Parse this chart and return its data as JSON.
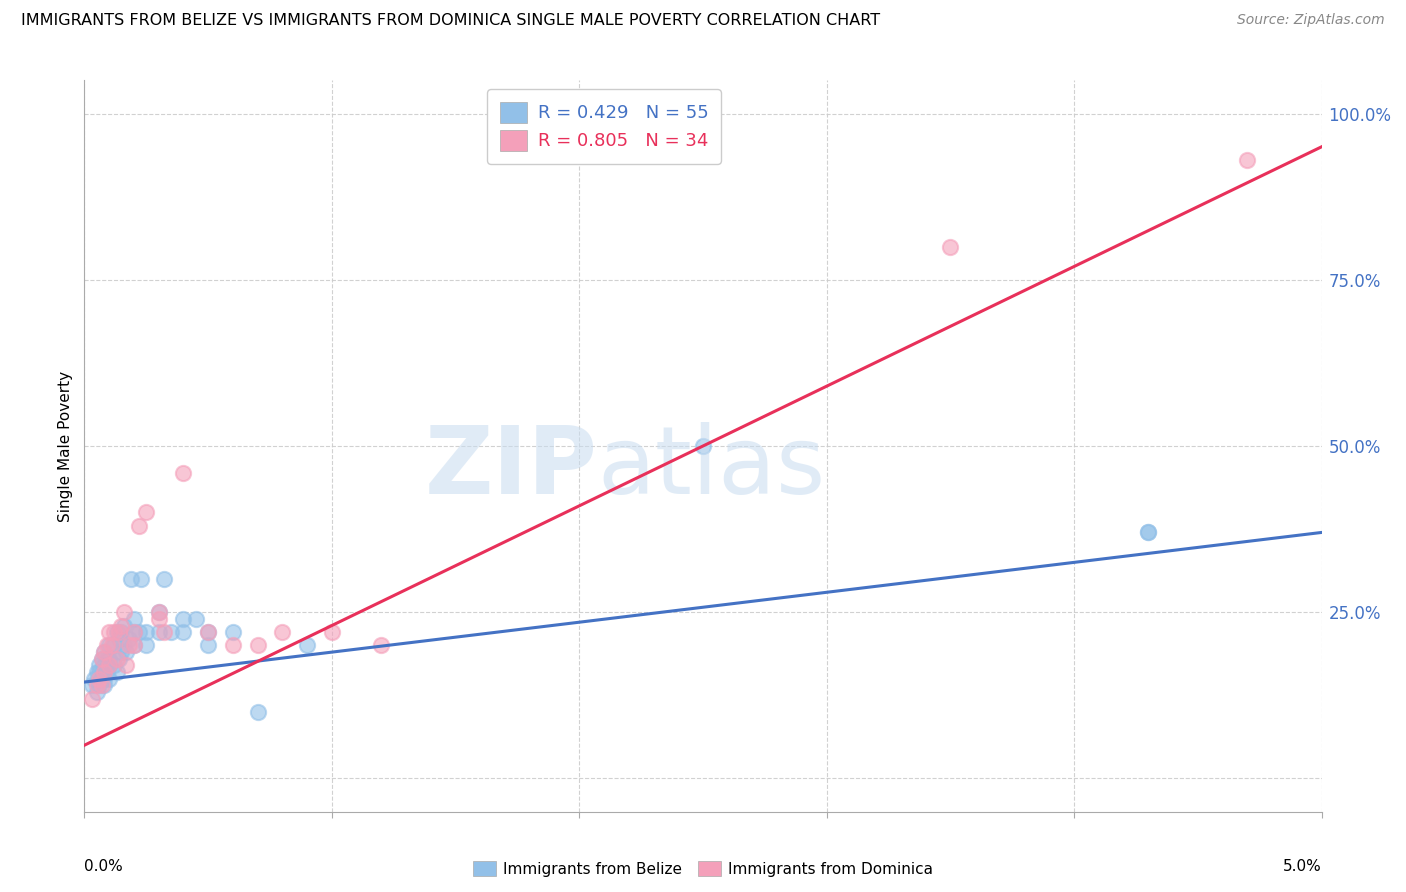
{
  "title": "IMMIGRANTS FROM BELIZE VS IMMIGRANTS FROM DOMINICA SINGLE MALE POVERTY CORRELATION CHART",
  "source": "Source: ZipAtlas.com",
  "ylabel": "Single Male Poverty",
  "xlim": [
    0.0,
    0.05
  ],
  "ylim": [
    -0.05,
    1.05
  ],
  "yticks": [
    0.0,
    0.25,
    0.5,
    0.75,
    1.0
  ],
  "ytick_labels": [
    "",
    "25.0%",
    "50.0%",
    "75.0%",
    "100.0%"
  ],
  "legend1_R": "0.429",
  "legend1_N": "55",
  "legend2_R": "0.805",
  "legend2_N": "34",
  "scatter_color_belize": "#92C0E8",
  "scatter_color_dominica": "#F4A0BA",
  "trend_color_belize": "#4472C4",
  "trend_color_dominica": "#E8305A",
  "belize_x": [
    0.0003,
    0.0004,
    0.0005,
    0.0005,
    0.0006,
    0.0006,
    0.0006,
    0.0007,
    0.0007,
    0.0007,
    0.0008,
    0.0008,
    0.0008,
    0.0008,
    0.0009,
    0.0009,
    0.001,
    0.001,
    0.001,
    0.001,
    0.0012,
    0.0012,
    0.0013,
    0.0013,
    0.0014,
    0.0014,
    0.0015,
    0.0015,
    0.0016,
    0.0016,
    0.0017,
    0.0018,
    0.0019,
    0.002,
    0.002,
    0.002,
    0.0022,
    0.0023,
    0.0025,
    0.0025,
    0.003,
    0.003,
    0.0032,
    0.0035,
    0.004,
    0.004,
    0.0045,
    0.005,
    0.005,
    0.006,
    0.007,
    0.009,
    0.025,
    0.043,
    0.043
  ],
  "belize_y": [
    0.14,
    0.15,
    0.13,
    0.16,
    0.14,
    0.16,
    0.17,
    0.15,
    0.16,
    0.18,
    0.14,
    0.15,
    0.17,
    0.19,
    0.16,
    0.18,
    0.15,
    0.17,
    0.18,
    0.2,
    0.17,
    0.2,
    0.16,
    0.22,
    0.18,
    0.21,
    0.19,
    0.22,
    0.2,
    0.23,
    0.19,
    0.21,
    0.3,
    0.2,
    0.22,
    0.24,
    0.22,
    0.3,
    0.2,
    0.22,
    0.22,
    0.25,
    0.3,
    0.22,
    0.22,
    0.24,
    0.24,
    0.2,
    0.22,
    0.22,
    0.1,
    0.2,
    0.5,
    0.37,
    0.37
  ],
  "dominica_x": [
    0.0003,
    0.0005,
    0.0006,
    0.0007,
    0.0007,
    0.0008,
    0.0008,
    0.0009,
    0.001,
    0.001,
    0.0011,
    0.0012,
    0.0013,
    0.0014,
    0.0015,
    0.0016,
    0.0017,
    0.0018,
    0.002,
    0.002,
    0.0022,
    0.0025,
    0.003,
    0.003,
    0.0032,
    0.004,
    0.005,
    0.006,
    0.007,
    0.008,
    0.01,
    0.012,
    0.035,
    0.047
  ],
  "dominica_y": [
    0.12,
    0.14,
    0.15,
    0.14,
    0.18,
    0.16,
    0.19,
    0.2,
    0.17,
    0.22,
    0.2,
    0.22,
    0.18,
    0.22,
    0.23,
    0.25,
    0.17,
    0.2,
    0.2,
    0.22,
    0.38,
    0.4,
    0.24,
    0.25,
    0.22,
    0.46,
    0.22,
    0.2,
    0.2,
    0.22,
    0.22,
    0.2,
    0.8,
    0.93
  ],
  "trend_belize_x0": 0.0,
  "trend_belize_y0": 0.145,
  "trend_belize_x1": 0.05,
  "trend_belize_y1": 0.37,
  "trend_dominica_x0": 0.0,
  "trend_dominica_y0": 0.05,
  "trend_dominica_x1": 0.05,
  "trend_dominica_y1": 0.95
}
